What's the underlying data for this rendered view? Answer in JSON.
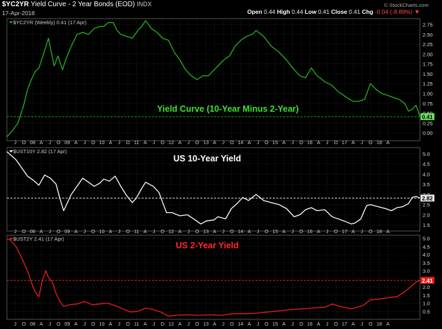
{
  "header": {
    "symbol": "$YC2YR",
    "description": "Yield Curve - 2 Year Bonds (EOD)",
    "exchange": "INDX",
    "date": "17-Apr-2018",
    "open_label": "Open",
    "open": "0.44",
    "high_label": "High",
    "high": "0.44",
    "low_label": "Low",
    "low": "0.41",
    "close_label": "Close",
    "close": "0.41",
    "chg_label": "Chg",
    "chg": "-0.04 (-8.89%)",
    "credit": "© StockCharts.com"
  },
  "colors": {
    "background": "#000000",
    "grid": "#3a3a3a",
    "yield_curve": "#22b41c",
    "ten_year": "#ffffff",
    "two_year": "#ee1c1c"
  },
  "x_axis_labels": [
    "J",
    "O",
    "08",
    "A",
    "J",
    "O",
    "09",
    "A",
    "J",
    "O",
    "10",
    "A",
    "J",
    "O",
    "11",
    "A",
    "J",
    "O",
    "12",
    "A",
    "J",
    "O",
    "13",
    "A",
    "J",
    "O",
    "14",
    "A",
    "J",
    "O",
    "15",
    "A",
    "J",
    "O",
    "16",
    "A",
    "J",
    "O",
    "17",
    "A",
    "J",
    "O",
    "18",
    "A"
  ],
  "chart_data": [
    {
      "type": "line",
      "legend": "$YC2YR (Weekly) 0.41 (17 Apr)",
      "annotation": "Yield Curve (10-Year Minus 2-Year)",
      "last_value_label": "0.41",
      "reference_value": 0.41,
      "ylim": [
        -0.2,
        2.9
      ],
      "y_ticks": [
        "2.75",
        "2.50",
        "2.25",
        "2.00",
        "1.75",
        "1.50",
        "1.25",
        "1.00",
        "0.75",
        "0.50",
        "0.25",
        "0.00"
      ],
      "x_range": [
        2007.46,
        2018.3
      ],
      "x": [
        2007.46,
        2007.6,
        2007.75,
        2007.9,
        2008.0,
        2008.1,
        2008.2,
        2008.3,
        2008.42,
        2008.55,
        2008.7,
        2008.8,
        2008.92,
        2009.0,
        2009.15,
        2009.3,
        2009.45,
        2009.6,
        2009.75,
        2009.9,
        2010.0,
        2010.12,
        2010.25,
        2010.35,
        2010.45,
        2010.6,
        2010.75,
        2010.9,
        2011.0,
        2011.1,
        2011.25,
        2011.4,
        2011.55,
        2011.7,
        2011.85,
        2012.0,
        2012.15,
        2012.3,
        2012.45,
        2012.6,
        2012.75,
        2012.9,
        2013.0,
        2013.15,
        2013.3,
        2013.45,
        2013.6,
        2013.75,
        2013.9,
        2014.0,
        2014.2,
        2014.4,
        2014.6,
        2014.8,
        2015.0,
        2015.15,
        2015.3,
        2015.45,
        2015.6,
        2015.8,
        2016.0,
        2016.15,
        2016.3,
        2016.45,
        2016.55,
        2016.7,
        2016.85,
        2017.0,
        2017.15,
        2017.3,
        2017.45,
        2017.6,
        2017.75,
        2017.9,
        2018.0,
        2018.1,
        2018.2,
        2018.3
      ],
      "values": [
        -0.1,
        0.05,
        0.25,
        0.7,
        1.1,
        1.35,
        1.55,
        1.65,
        2.0,
        2.4,
        1.7,
        1.95,
        1.6,
        1.85,
        2.2,
        2.5,
        2.55,
        2.5,
        2.65,
        2.7,
        2.7,
        2.8,
        2.8,
        2.6,
        2.5,
        2.45,
        2.4,
        2.6,
        2.7,
        2.85,
        2.65,
        2.55,
        2.4,
        2.35,
        2.05,
        1.85,
        1.6,
        1.45,
        1.35,
        1.45,
        1.45,
        1.6,
        1.7,
        1.85,
        1.95,
        2.2,
        2.35,
        2.45,
        2.5,
        2.6,
        2.45,
        2.2,
        2.05,
        1.85,
        1.6,
        1.45,
        1.4,
        1.65,
        1.45,
        1.3,
        1.2,
        1.05,
        0.95,
        0.85,
        0.8,
        0.8,
        0.85,
        1.25,
        1.1,
        1.0,
        0.95,
        0.9,
        0.85,
        0.75,
        0.55,
        0.6,
        0.7,
        0.41
      ]
    },
    {
      "type": "line",
      "legend": "$UST10Y 2.82 (17 Apr)",
      "annotation": "US 10-Year Yield",
      "last_value_label": "2.82",
      "reference_value": 2.82,
      "ylim": [
        1.2,
        5.3
      ],
      "y_ticks": [
        "5.0",
        "4.5",
        "4.0",
        "3.5",
        "3.0",
        "2.5",
        "2.0",
        "1.5"
      ],
      "x_range": [
        2007.46,
        2018.3
      ],
      "x": [
        2007.46,
        2007.55,
        2007.7,
        2007.85,
        2008.0,
        2008.15,
        2008.3,
        2008.45,
        2008.6,
        2008.75,
        2008.85,
        2008.95,
        2009.0,
        2009.15,
        2009.3,
        2009.45,
        2009.6,
        2009.75,
        2009.9,
        2010.0,
        2010.15,
        2010.3,
        2010.45,
        2010.6,
        2010.75,
        2010.85,
        2011.0,
        2011.1,
        2011.3,
        2011.45,
        2011.55,
        2011.65,
        2011.8,
        2012.0,
        2012.2,
        2012.4,
        2012.55,
        2012.7,
        2012.9,
        2013.0,
        2013.2,
        2013.35,
        2013.5,
        2013.65,
        2013.8,
        2014.0,
        2014.2,
        2014.4,
        2014.6,
        2014.8,
        2015.0,
        2015.15,
        2015.3,
        2015.45,
        2015.6,
        2015.8,
        2016.0,
        2016.15,
        2016.3,
        2016.5,
        2016.6,
        2016.75,
        2016.9,
        2017.0,
        2017.2,
        2017.4,
        2017.55,
        2017.7,
        2017.85,
        2018.0,
        2018.1,
        2018.2,
        2018.3
      ],
      "values": [
        5.1,
        4.95,
        4.7,
        4.3,
        3.9,
        3.7,
        3.45,
        3.95,
        3.8,
        3.5,
        2.8,
        2.2,
        2.4,
        3.0,
        3.4,
        3.8,
        3.6,
        3.4,
        3.55,
        3.75,
        3.65,
        3.9,
        3.4,
        2.95,
        2.6,
        2.8,
        3.3,
        3.6,
        3.4,
        3.1,
        2.6,
        2.1,
        2.1,
        1.95,
        2.0,
        1.75,
        1.55,
        1.7,
        1.75,
        1.9,
        1.8,
        2.3,
        2.55,
        2.85,
        2.7,
        3.0,
        2.7,
        2.6,
        2.5,
        2.3,
        1.9,
        2.0,
        2.25,
        2.35,
        2.2,
        2.25,
        1.9,
        1.8,
        1.7,
        1.55,
        1.6,
        1.8,
        2.45,
        2.5,
        2.4,
        2.3,
        2.2,
        2.35,
        2.4,
        2.55,
        2.85,
        2.9,
        2.82
      ]
    },
    {
      "type": "line",
      "legend": "$UST2Y 2.41 (17 Apr)",
      "annotation": "US 2-Year Yield",
      "last_value_label": "2.41",
      "reference_value": 2.41,
      "ylim": [
        0.0,
        5.2
      ],
      "y_ticks": [
        "5.0",
        "4.5",
        "4.0",
        "3.5",
        "3.0",
        "2.5",
        "2.0",
        "1.5",
        "1.0",
        "0.5"
      ],
      "x_range": [
        2007.46,
        2018.3
      ],
      "x": [
        2007.46,
        2007.55,
        2007.7,
        2007.85,
        2008.0,
        2008.1,
        2008.2,
        2008.3,
        2008.4,
        2008.48,
        2008.55,
        2008.65,
        2008.75,
        2008.85,
        2008.95,
        2009.1,
        2009.3,
        2009.5,
        2009.7,
        2009.9,
        2010.1,
        2010.3,
        2010.5,
        2010.7,
        2010.9,
        2011.1,
        2011.3,
        2011.5,
        2011.7,
        2011.9,
        2012.2,
        2012.5,
        2012.8,
        2013.1,
        2013.4,
        2013.7,
        2014.0,
        2014.3,
        2014.6,
        2014.9,
        2015.2,
        2015.5,
        2015.8,
        2016.0,
        2016.2,
        2016.5,
        2016.8,
        2017.0,
        2017.2,
        2017.5,
        2017.7,
        2017.9,
        2018.0,
        2018.1,
        2018.2,
        2018.3
      ],
      "values": [
        4.95,
        4.9,
        4.5,
        3.8,
        3.0,
        2.3,
        1.7,
        1.4,
        2.5,
        3.0,
        2.6,
        2.3,
        1.6,
        1.1,
        0.8,
        0.9,
        0.95,
        1.1,
        0.9,
        0.95,
        1.0,
        0.85,
        0.65,
        0.45,
        0.5,
        0.7,
        0.6,
        0.45,
        0.2,
        0.25,
        0.28,
        0.25,
        0.28,
        0.25,
        0.35,
        0.35,
        0.38,
        0.45,
        0.52,
        0.6,
        0.65,
        0.7,
        0.75,
        0.95,
        0.8,
        0.65,
        0.85,
        1.2,
        1.25,
        1.35,
        1.4,
        1.7,
        1.9,
        2.1,
        2.3,
        2.41
      ]
    }
  ]
}
